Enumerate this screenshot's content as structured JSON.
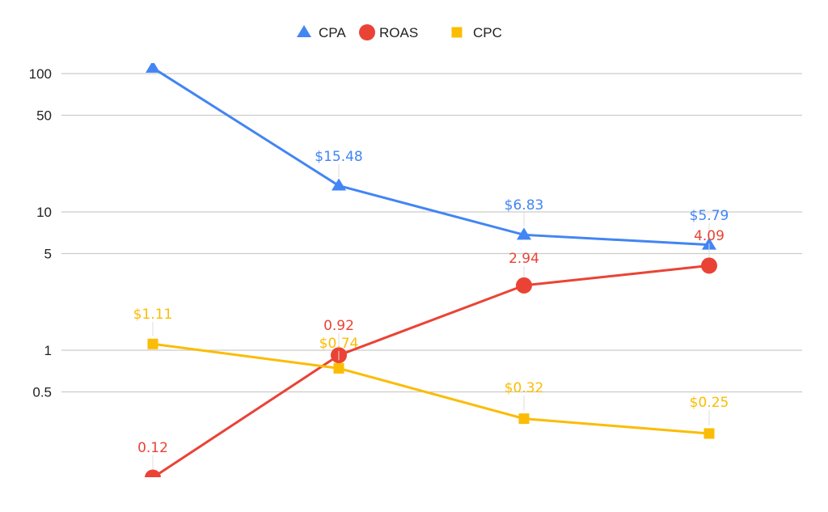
{
  "chart_data": {
    "type": "line",
    "title": "",
    "xlabel": "",
    "ylabel": "",
    "yscale": "log",
    "ylim": [
      0.12,
      110
    ],
    "grid": true,
    "legend_position": "top",
    "y_ticks": [
      100,
      50,
      10,
      5,
      1,
      0.5
    ],
    "y_tick_labels": [
      "100",
      "50",
      "10",
      "5",
      "1",
      "0.5"
    ],
    "categories": [
      "",
      "",
      "",
      ""
    ],
    "series": [
      {
        "name": "CPA",
        "marker": "triangle",
        "color": "#4285f4",
        "values": [
          110,
          15.48,
          6.83,
          5.79
        ],
        "labels": [
          "",
          "$15.48",
          "$6.83",
          "$5.79"
        ]
      },
      {
        "name": "ROAS",
        "marker": "circle",
        "color": "#ea4335",
        "values": [
          0.12,
          0.92,
          2.94,
          4.09
        ],
        "labels": [
          "0.12",
          "0.92",
          "2.94",
          "4.09"
        ]
      },
      {
        "name": "CPC",
        "marker": "square",
        "color": "#fbbc04",
        "values": [
          1.11,
          0.74,
          0.32,
          0.25
        ],
        "labels": [
          "$1.11",
          "$0.74",
          "$0.32",
          "$0.25"
        ]
      }
    ]
  }
}
